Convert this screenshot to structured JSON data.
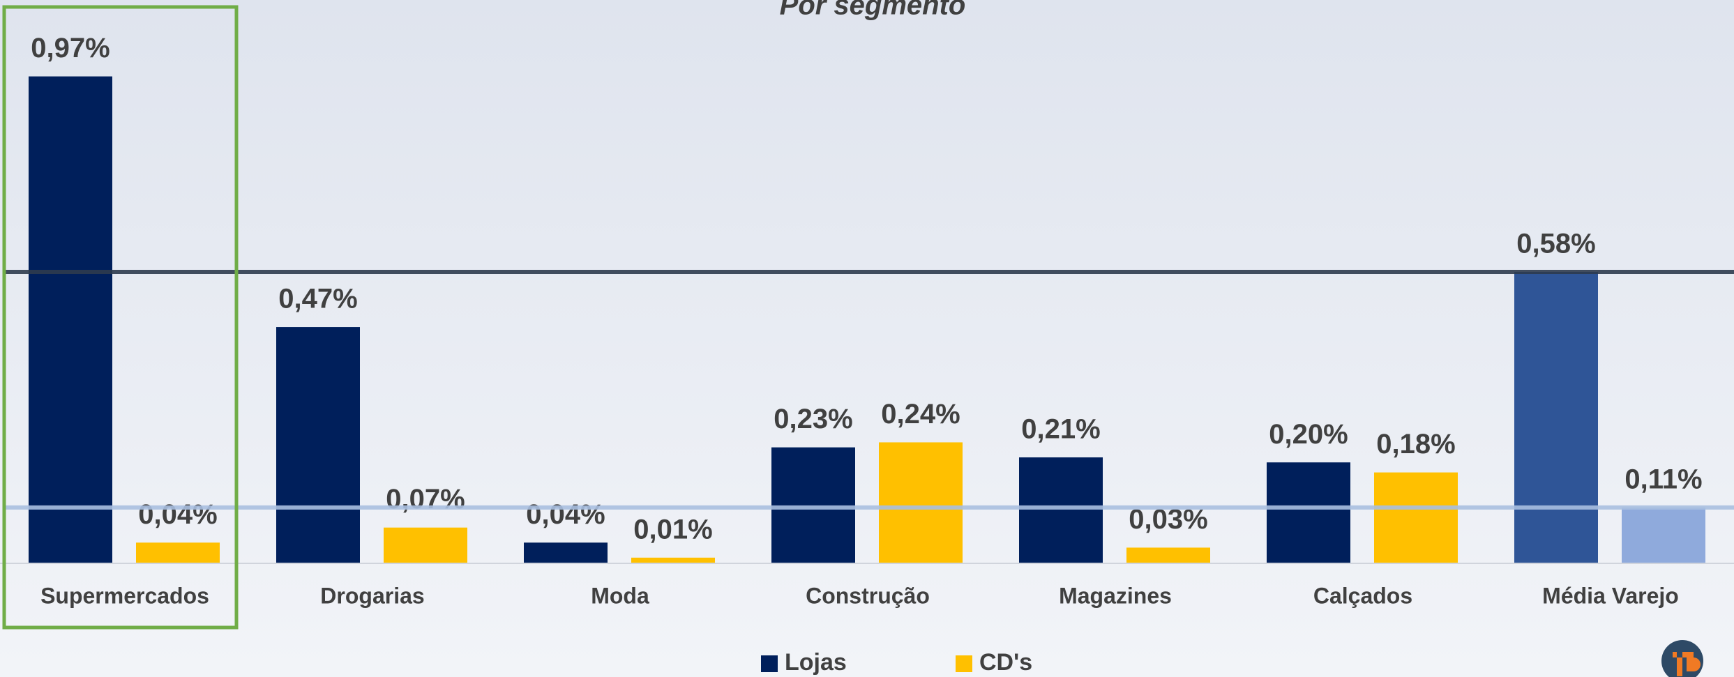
{
  "chart_data": {
    "type": "bar",
    "title": "Por segmento",
    "categories": [
      "Supermercados",
      "Drogarias",
      "Moda",
      "Construção",
      "Magazines",
      "Calçados",
      "Média Varejo"
    ],
    "series": [
      {
        "name": "Lojas",
        "color": "#001f5b",
        "colors": [
          "#001f5b",
          "#001f5b",
          "#001f5b",
          "#001f5b",
          "#001f5b",
          "#001f5b",
          "#2f5597"
        ],
        "values": [
          0.97,
          0.47,
          0.04,
          0.23,
          0.21,
          0.2,
          0.58
        ],
        "value_labels": [
          "0,97%",
          "0,47%",
          "0,04%",
          "0,23%",
          "0,21%",
          "0,20%",
          "0,58%"
        ]
      },
      {
        "name": "CD's",
        "color": "#ffc000",
        "colors": [
          "#ffc000",
          "#ffc000",
          "#ffc000",
          "#ffc000",
          "#ffc000",
          "#ffc000",
          "#8faadc"
        ],
        "values": [
          0.04,
          0.07,
          0.01,
          0.24,
          0.03,
          0.18,
          0.11
        ],
        "value_labels": [
          "0,04%",
          "0,07%",
          "0,01%",
          "0,24%",
          "0,03%",
          "0,18%",
          "0,11%"
        ]
      }
    ],
    "ylim": [
      0,
      1.0
    ],
    "reference_lines": [
      {
        "value": 0.58,
        "color": "#2e3b4e"
      },
      {
        "value": 0.11,
        "color": "#a9bfe0"
      }
    ],
    "highlight_index": 0,
    "highlight_color": "#70ad47"
  }
}
